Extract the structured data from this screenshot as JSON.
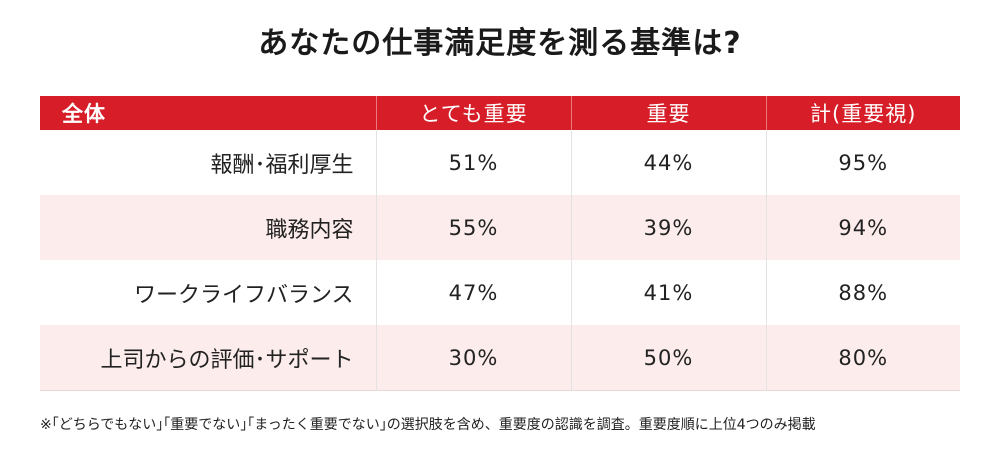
{
  "chart_data": {
    "type": "table",
    "title": "あなたの仕事満足度を測る基準は?",
    "columns": [
      "全体",
      "とても重要",
      "重要",
      "計(重要視)"
    ],
    "rows": [
      {
        "label": "報酬･福利厚生",
        "values": [
          "51%",
          "44%",
          "95%"
        ]
      },
      {
        "label": "職務内容",
        "values": [
          "55%",
          "39%",
          "94%"
        ]
      },
      {
        "label": "ワークライフバランス",
        "values": [
          "47%",
          "41%",
          "88%"
        ]
      },
      {
        "label": "上司からの評価･サポート",
        "values": [
          "30%",
          "50%",
          "80%"
        ]
      }
    ],
    "footnote": "※｢どちらでもない｣｢重要でない｣｢まったく重要でない｣の選択肢を含め、重要度の認識を調査。重要度順に上位4つのみ掲載"
  },
  "colors": {
    "header_bg": "#d71e28",
    "header_text": "#ffffff",
    "row_alt_bg": "#fcecec"
  }
}
